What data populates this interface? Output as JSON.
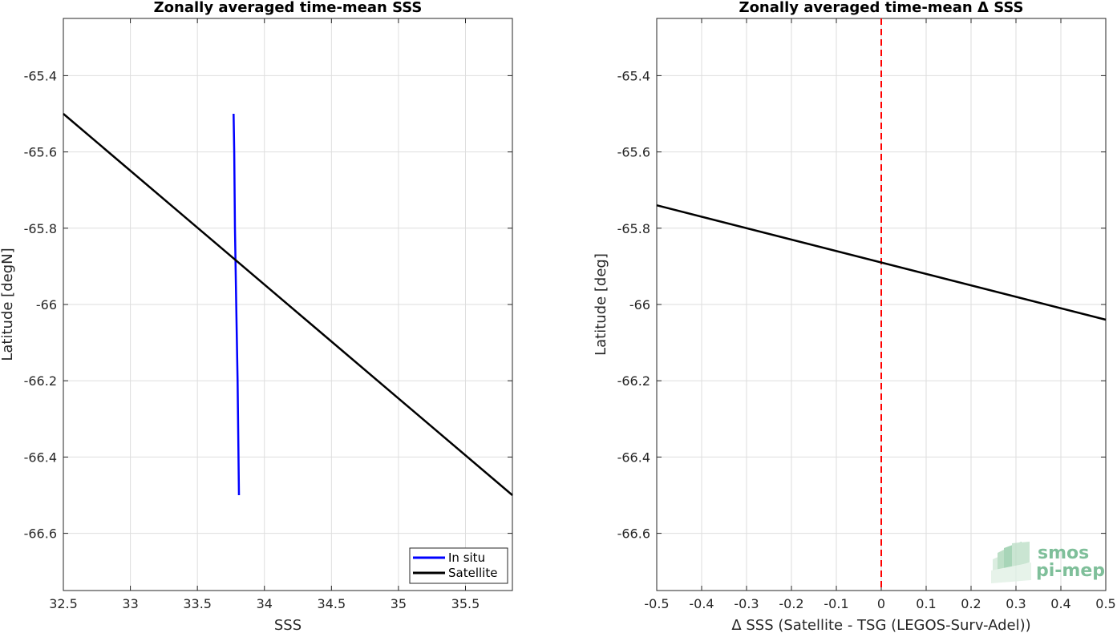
{
  "chart_data": [
    {
      "type": "line",
      "title": "Zonally averaged time-mean SSS",
      "xlabel": "SSS",
      "ylabel": "Latitude [degN]",
      "xlim": [
        32.5,
        35.85
      ],
      "ylim": [
        -66.75,
        -65.25
      ],
      "xticks": [
        32.5,
        33,
        33.5,
        34,
        34.5,
        35,
        35.5
      ],
      "xtick_labels": [
        "32.5",
        "33",
        "33.5",
        "34",
        "34.5",
        "35",
        "35.5"
      ],
      "yticks": [
        -65.4,
        -65.6,
        -65.8,
        -66,
        -66.2,
        -66.4,
        -66.6
      ],
      "ytick_labels": [
        "-65.4",
        "-65.6",
        "-65.8",
        "-66",
        "-66.2",
        "-66.4",
        "-66.6"
      ],
      "grid": true,
      "legend_position": "bottom-right",
      "series": [
        {
          "name": "In situ",
          "color": "#0000ff",
          "x": [
            33.77,
            33.775,
            33.78,
            33.79,
            33.8,
            33.81
          ],
          "y": [
            -65.5,
            -65.6,
            -65.8,
            -66.0,
            -66.2,
            -66.5
          ]
        },
        {
          "name": "Satellite",
          "color": "#000000",
          "x": [
            32.5,
            35.85
          ],
          "y": [
            -65.5,
            -66.5
          ]
        }
      ]
    },
    {
      "type": "line",
      "title": "Zonally averaged time-mean Δ SSS",
      "xlabel": "Δ SSS (Satellite - TSG (LEGOS-Surv-Adel))",
      "ylabel": "Latitude [deg]",
      "xlim": [
        -0.5,
        0.5
      ],
      "ylim": [
        -66.75,
        -65.25
      ],
      "xticks": [
        -0.5,
        -0.4,
        -0.3,
        -0.2,
        -0.1,
        0,
        0.1,
        0.2,
        0.3,
        0.4,
        0.5
      ],
      "xtick_labels": [
        "-0.5",
        "-0.4",
        "-0.3",
        "-0.2",
        "-0.1",
        "0",
        "0.1",
        "0.2",
        "0.3",
        "0.4",
        "0.5"
      ],
      "yticks": [
        -65.4,
        -65.6,
        -65.8,
        -66,
        -66.2,
        -66.4,
        -66.6
      ],
      "ytick_labels": [
        "-65.4",
        "-65.6",
        "-65.8",
        "-66",
        "-66.2",
        "-66.4",
        "-66.6"
      ],
      "grid": true,
      "reference_line": {
        "x": 0,
        "color": "#ff0000",
        "style": "dashed"
      },
      "series": [
        {
          "color": "#000000",
          "x": [
            -0.5,
            0.5
          ],
          "y": [
            -65.74,
            -66.04
          ]
        }
      ]
    }
  ],
  "logo": {
    "line1": "smos",
    "line2": "pi-mep"
  }
}
